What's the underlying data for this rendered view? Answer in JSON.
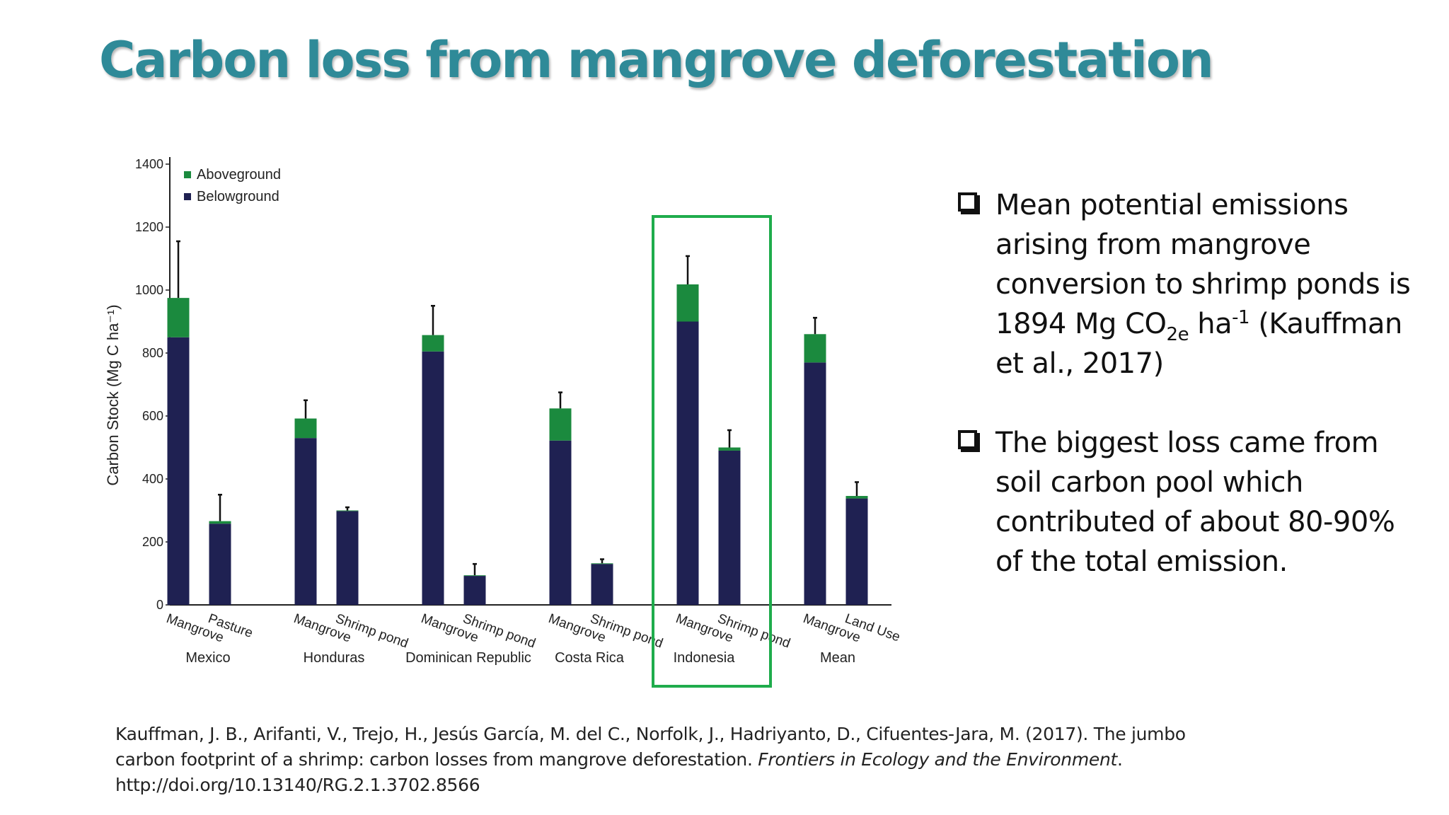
{
  "slide": {
    "title": "Carbon loss from mangrove deforestation"
  },
  "bullets": [
    {
      "pre": "Mean potential emissions arising from mangrove conversion to shrimp ponds is 1894 Mg CO",
      "sub": "2e",
      "mid": " ha",
      "sup": "-1",
      "post": " (Kauffman et al., 2017)"
    },
    {
      "text": "The biggest loss came from soil carbon pool which contributed of about 80-90% of the total emission."
    }
  ],
  "reference": {
    "authors": "Kauffman, J. B., Arifanti, V., Trejo, H., Jesús García, M. del C., Norfolk, J., Hadriyanto, D., Cifuentes-Jara, M. (2017). The jumbo carbon footprint of a shrimp: carbon losses from mangrove deforestation.",
    "journal": "Frontiers in Ecology and the Environment",
    "doi": "http://doi.org/10.13140/RG.2.1.3702.8566"
  },
  "chart_data": {
    "type": "bar",
    "stacked": true,
    "ylabel": "Carbon Stock (Mg C ha⁻¹)",
    "ylim": [
      0,
      1400
    ],
    "yticks": [
      0,
      200,
      400,
      600,
      800,
      1000,
      1200,
      1400
    ],
    "legend_position": "top-left",
    "colors": {
      "Aboveground": "#1b8a3e",
      "Belowground": "#1f2152",
      "highlight": "#1fac4c"
    },
    "groups": [
      "Mexico",
      "Honduras",
      "Dominican Republic",
      "Costa Rica",
      "Indonesia",
      "Mean"
    ],
    "categories": [
      "Mangrove",
      "Pasture",
      "Mangrove",
      "Shrimp pond",
      "Mangrove",
      "Shrimp pond",
      "Mangrove",
      "Shrimp pond",
      "Mangrove",
      "Shrimp pond",
      "Mangrove",
      "Land Use"
    ],
    "series": [
      {
        "name": "Belowground",
        "values": [
          850,
          258,
          530,
          298,
          805,
          92,
          522,
          130,
          900,
          490,
          770,
          338
        ]
      },
      {
        "name": "Aboveground",
        "values": [
          125,
          8,
          62,
          2,
          52,
          2,
          102,
          2,
          118,
          10,
          90,
          8
        ]
      }
    ],
    "error_bar_tops": [
      1155,
      350,
      650,
      310,
      950,
      130,
      675,
      145,
      1108,
      555,
      912,
      390
    ],
    "highlighted_group": "Indonesia"
  }
}
